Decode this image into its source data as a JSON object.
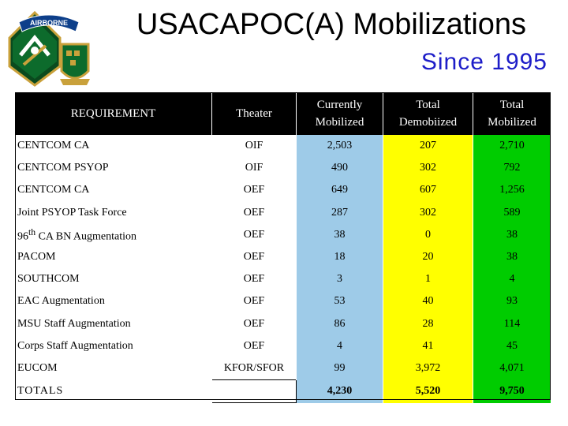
{
  "header": {
    "title": "USACAPOC(A) Mobilizations",
    "subtitle": "Since 1995",
    "logos": {
      "airborne_tab_text": "AIRBORNE",
      "left_icon": "airborne-patch-icon",
      "right_icon": "crest-icon"
    }
  },
  "table": {
    "headers": {
      "requirement": "REQUIREMENT",
      "theater": "Theater",
      "currently_mobilized_1": "Currently",
      "currently_mobilized_2": "Mobilized",
      "total_demobilized_1": "Total",
      "total_demobilized_2": "Demobiized",
      "total_mobilized_1": "Total",
      "total_mobilized_2": "Mobilized"
    },
    "rows": [
      {
        "requirement": "CENTCOM CA",
        "theater": "OIF",
        "currently": "2,503",
        "demob": "207",
        "total": "2,710"
      },
      {
        "requirement": "CENTCOM PSYOP",
        "theater": "OIF",
        "currently": "490",
        "demob": "302",
        "total": "792"
      },
      {
        "requirement": "CENTCOM CA",
        "theater": "OEF",
        "currently": "649",
        "demob": "607",
        "total": "1,256"
      },
      {
        "requirement": "Joint PSYOP Task Force",
        "theater": "OEF",
        "currently": "287",
        "demob": "302",
        "total": "589"
      },
      {
        "requirement_main": "96",
        "requirement_sup": "th",
        "requirement_rest": " CA BN Augmentation",
        "theater": "OEF",
        "currently": "38",
        "demob": "0",
        "total": "38"
      },
      {
        "requirement": "PACOM",
        "theater": "OEF",
        "currently": "18",
        "demob": "20",
        "total": "38"
      },
      {
        "requirement": "SOUTHCOM",
        "theater": "OEF",
        "currently": "3",
        "demob": "1",
        "total": "4"
      },
      {
        "requirement": "EAC Augmentation",
        "theater": "OEF",
        "currently": "53",
        "demob": "40",
        "total": "93"
      },
      {
        "requirement": "MSU Staff Augmentation",
        "theater": "OEF",
        "currently": "86",
        "demob": "28",
        "total": "114"
      },
      {
        "requirement": "Corps Staff Augmentation",
        "theater": "OEF",
        "currently": "4",
        "demob": "41",
        "total": "45"
      },
      {
        "requirement": "EUCOM",
        "theater": "KFOR/SFOR",
        "currently": "99",
        "demob": "3,972",
        "total": "4,071"
      }
    ],
    "totals": {
      "label": "TOTALS",
      "theater": "",
      "currently": "4,230",
      "demob": "5,520",
      "total": "9,750"
    }
  },
  "colors": {
    "header_bg": "#000000",
    "currently_col": "#9ecbe8",
    "demob_col": "#ffff00",
    "total_col": "#00cc00",
    "subtitle": "#1d1dc8"
  }
}
